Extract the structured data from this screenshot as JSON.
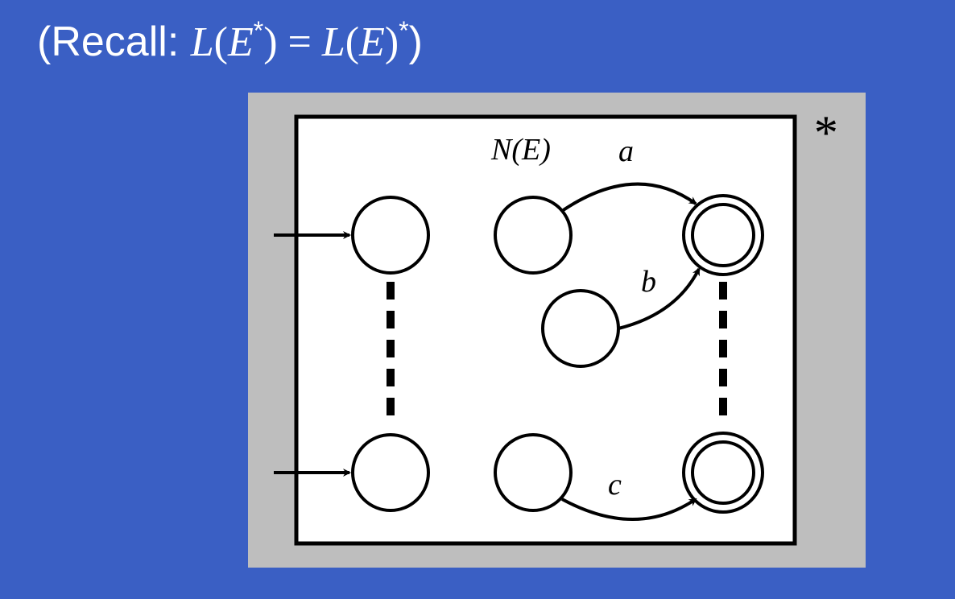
{
  "title": {
    "prefix": "(Recall: ",
    "L1": "L",
    "open1": "(",
    "E1": "E",
    "star1": "*",
    "close1": ")",
    "eq": " = ",
    "L2": "L",
    "open2": "(",
    "E2": "E",
    "close2": ")",
    "star2": "*",
    "suffix": ")"
  },
  "diagram": {
    "outer_star": "*",
    "box_label": "N(E)",
    "edge_labels": {
      "a": "a",
      "b": "b",
      "c": "c"
    },
    "colors": {
      "background": "#3a5fc4",
      "gray_box": "#bebebe",
      "inner_box": "#ffffff",
      "stroke": "#000000"
    }
  }
}
